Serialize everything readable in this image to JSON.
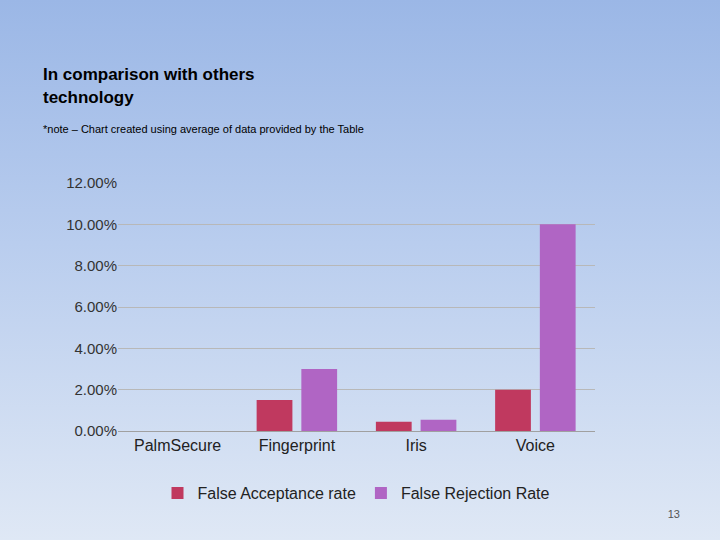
{
  "chart_data": {
    "type": "bar",
    "title": "In comparison with others technology",
    "subtitle": "*note – Chart created using average of data provided by the Table",
    "annotations": [
      "13"
    ],
    "categories": [
      "PalmSecure",
      "Fingerprint",
      "Iris",
      "Voice"
    ],
    "series": [
      {
        "name": "False Acceptance rate",
        "color": "#c0395f",
        "values": [
          0,
          1.5,
          0.45,
          2.0
        ]
      },
      {
        "name": "False Rejection Rate",
        "color": "#b065c4",
        "values": [
          0,
          3.0,
          0.55,
          10.0
        ]
      }
    ],
    "ylim": [
      0,
      12
    ],
    "yticks": [
      {
        "value": 0,
        "label": "0.00%"
      },
      {
        "value": 2,
        "label": "2.00%"
      },
      {
        "value": 4,
        "label": "4.00%"
      },
      {
        "value": 6,
        "label": "6.00%"
      },
      {
        "value": 8,
        "label": "8.00%"
      },
      {
        "value": 10,
        "label": "10.00%"
      },
      {
        "value": 12,
        "label": "12.00%"
      }
    ],
    "grid": true,
    "legend": "bottom"
  }
}
